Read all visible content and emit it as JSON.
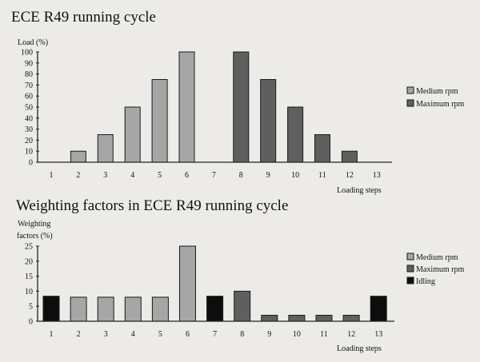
{
  "chart_data": [
    {
      "type": "bar",
      "title": "ECE R49 running cycle",
      "ylabel": "Load (%)",
      "xlabel": "Loading steps",
      "ylim": [
        0,
        100
      ],
      "yticks": [
        0,
        10,
        20,
        30,
        40,
        50,
        60,
        70,
        80,
        90,
        100
      ],
      "categories": [
        "1",
        "2",
        "3",
        "4",
        "5",
        "6",
        "7",
        "8",
        "9",
        "10",
        "11",
        "12",
        "13"
      ],
      "grid": false,
      "legend_position": "right",
      "series": [
        {
          "name": "Medium rpm",
          "color": "#a6a6a6",
          "values": [
            null,
            10,
            25,
            50,
            75,
            100,
            null,
            null,
            null,
            null,
            null,
            null,
            null
          ]
        },
        {
          "name": "Maximum rpm",
          "color": "#5f5f5f",
          "values": [
            null,
            null,
            null,
            null,
            null,
            null,
            null,
            100,
            75,
            50,
            25,
            10,
            null
          ]
        }
      ]
    },
    {
      "type": "bar",
      "title": "Weighting factors in ECE R49 running cycle",
      "ylabel_line1": "Weighting",
      "ylabel_line2": "factors (%)",
      "xlabel": "Loading steps",
      "ylim": [
        0,
        25
      ],
      "yticks": [
        0,
        5,
        10,
        15,
        20,
        25
      ],
      "categories": [
        "1",
        "2",
        "3",
        "4",
        "5",
        "6",
        "7",
        "8",
        "9",
        "10",
        "11",
        "12",
        "13"
      ],
      "grid": false,
      "legend_position": "right",
      "series": [
        {
          "name": "Medium rpm",
          "color": "#a6a6a6",
          "values": [
            null,
            8,
            8,
            8,
            8,
            25,
            null,
            null,
            null,
            null,
            null,
            null,
            null
          ]
        },
        {
          "name": "Maximum rpm",
          "color": "#5f5f5f",
          "values": [
            null,
            null,
            null,
            null,
            null,
            null,
            null,
            10,
            2,
            2,
            2,
            2,
            null
          ]
        },
        {
          "name": "Idling",
          "color": "#0d0d0d",
          "values": [
            8.33,
            null,
            null,
            null,
            null,
            null,
            8.33,
            null,
            null,
            null,
            null,
            null,
            8.33
          ]
        }
      ]
    }
  ]
}
